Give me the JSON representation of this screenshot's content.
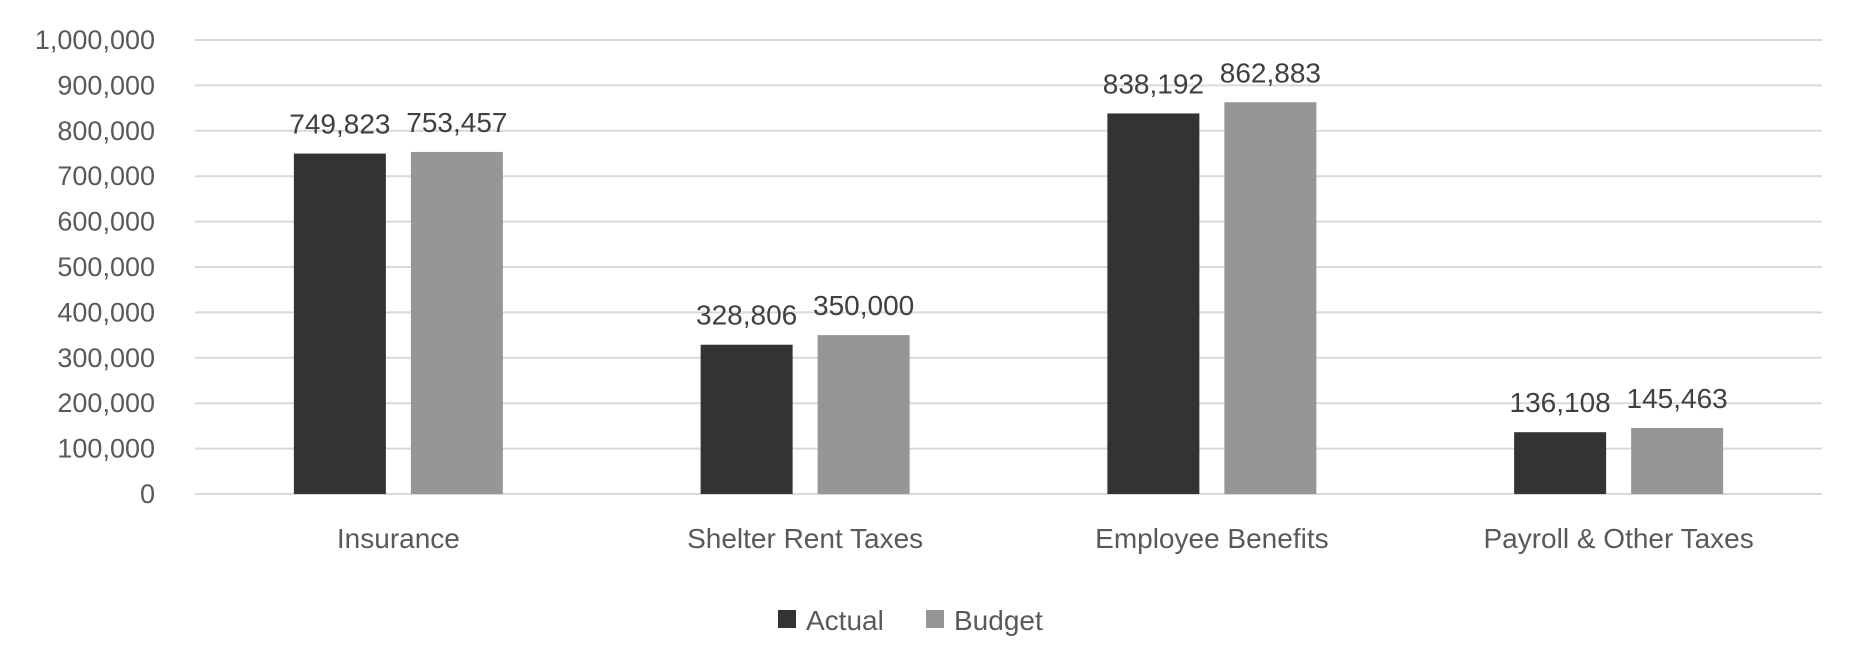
{
  "chart_data": {
    "type": "bar",
    "title": "",
    "xlabel": "",
    "ylabel": "",
    "categories": [
      "Insurance",
      "Shelter Rent Taxes",
      "Employee Benefits",
      "Payroll & Other Taxes"
    ],
    "series": [
      {
        "name": "Actual",
        "color": "#333333",
        "values": [
          749823,
          328806,
          838192,
          136108
        ],
        "labels": [
          "749,823",
          "328,806",
          "838,192",
          "136,108"
        ]
      },
      {
        "name": "Budget",
        "color": "#959698",
        "values": [
          753457,
          350000,
          862883,
          145463
        ],
        "labels": [
          "753,457",
          "350,000",
          "862,883",
          "145,463"
        ]
      }
    ],
    "ylim": [
      0,
      1000000
    ],
    "yticks": [
      0,
      100000,
      200000,
      300000,
      400000,
      500000,
      600000,
      700000,
      800000,
      900000,
      1000000
    ],
    "ytick_labels": [
      "0",
      "100,000",
      "200,000",
      "300,000",
      "400,000",
      "500,000",
      "600,000",
      "700,000",
      "800,000",
      "900,000",
      "1,000,000"
    ],
    "grid": true,
    "legend": {
      "position": "bottom",
      "entries": [
        "Actual",
        "Budget"
      ]
    }
  }
}
